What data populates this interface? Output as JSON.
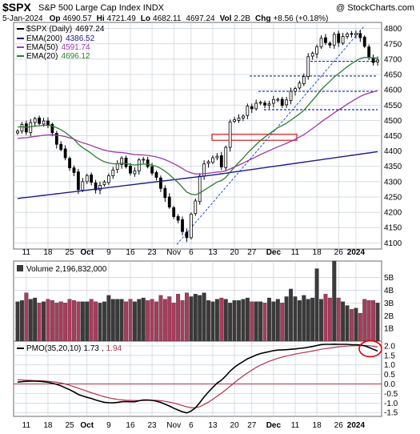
{
  "header": {
    "symbol": "$SPX",
    "name": "S&P 500 Large Cap Index",
    "exchange": "INDX",
    "watermark": "@ StockCharts.com",
    "date": "5-Jan-2024",
    "open_label": "Op",
    "open": "4690.57",
    "high_label": "Hi",
    "high": "4721.49",
    "low_label": "Lo",
    "low": "4682.11",
    "close": "4697.24",
    "vol_label": "Vol",
    "vol": "2.2B",
    "chg_label": "Chg",
    "chg": "+8.56 (+0.18%)"
  },
  "colors": {
    "up_candle": "#000000",
    "down_candle": "#000000",
    "ema200": "#1c1c8c",
    "ema50": "#9c3aa8",
    "ema20": "#2e7d32",
    "volume_up": "#3a3a3a",
    "volume_down": "#a83c5c",
    "pmo": "#000000",
    "pmo_signal": "#b2334a",
    "trend": "#2a4fd6",
    "annotation_box": "#cc2222",
    "grid": "#c8d0dc",
    "pane_bg": "#ffffff"
  },
  "chart_data": [
    {
      "type": "candlestick",
      "legend": [
        {
          "name": "$SPX (Daily)",
          "value": "4697.24",
          "color": "#000000"
        },
        {
          "name": "EMA(200)",
          "value": "4386.52",
          "color": "#1c1c8c"
        },
        {
          "name": "EMA(50)",
          "value": "4591.74",
          "color": "#9c3aa8"
        },
        {
          "name": "EMA(20)",
          "value": "4696.12",
          "color": "#2e7d32"
        }
      ],
      "x_tick_labels": [
        "11",
        "18",
        "25",
        "Oct",
        "9",
        "16",
        "23",
        "Nov",
        "6",
        "13",
        "20",
        "27",
        "Dec",
        "11",
        "18",
        "26",
        "2024"
      ],
      "y_ticks": [
        4100,
        4150,
        4200,
        4250,
        4300,
        4350,
        4400,
        4450,
        4500,
        4550,
        4600,
        4650,
        4700,
        4750,
        4800
      ],
      "ylim": [
        4080,
        4820
      ],
      "closes": [
        4465,
        4487,
        4462,
        4493,
        4506,
        4490,
        4498,
        4485,
        4460,
        4422,
        4405,
        4378,
        4345,
        4330,
        4274,
        4300,
        4320,
        4298,
        4273,
        4288,
        4299,
        4319,
        4338,
        4358,
        4377,
        4349,
        4328,
        4335,
        4371,
        4373,
        4349,
        4328,
        4314,
        4278,
        4248,
        4217,
        4186,
        4174,
        4137,
        4117,
        4194,
        4237,
        4318,
        4358,
        4365,
        4378,
        4383,
        4348,
        4412,
        4495,
        4502,
        4508,
        4514,
        4547,
        4538,
        4556,
        4559,
        4550,
        4554,
        4568,
        4569,
        4549,
        4567,
        4595,
        4604,
        4622,
        4643,
        4708,
        4719,
        4740,
        4768,
        4754,
        4746,
        4781,
        4754,
        4774,
        4782,
        4781,
        4784,
        4770,
        4742,
        4705,
        4689,
        4697
      ],
      "horizontal_lines": [
        4535,
        4595,
        4645,
        4693
      ],
      "annotation_box": {
        "x0": 4435,
        "x1": 4455
      },
      "trend_line": {
        "from": 4095,
        "to": 4810
      }
    },
    {
      "type": "bar",
      "title": "Volume",
      "value_label": "2,196,832,000",
      "y_tick_labels": [
        "1B",
        "2B",
        "3B",
        "4B",
        "5B"
      ],
      "y_ticks": [
        1,
        2,
        3,
        4,
        5
      ],
      "ylim": [
        0,
        6.3
      ],
      "values_billion": [
        3.1,
        3.2,
        3.8,
        3.3,
        3.4,
        3.0,
        3.1,
        3.3,
        3.2,
        3.0,
        3.1,
        3.0,
        3.3,
        3.2,
        3.1,
        3.1,
        3.1,
        3.3,
        3.1,
        3.0,
        3.1,
        3.6,
        3.3,
        3.3,
        3.3,
        3.1,
        3.3,
        3.1,
        3.3,
        3.4,
        3.2,
        3.3,
        3.1,
        3.6,
        3.3,
        3.5,
        3.0,
        3.7,
        3.2,
        3.8,
        3.5,
        3.7,
        3.6,
        3.8,
        3.2,
        3.1,
        3.3,
        3.4,
        3.3,
        3.0,
        3.2,
        3.2,
        3.3,
        3.4,
        3.1,
        3.1,
        3.1,
        3.0,
        3.4,
        3.1,
        3.3,
        3.0,
        3.5,
        4.1,
        3.5,
        3.2,
        3.6,
        3.3,
        3.4,
        5.7,
        3.3,
        3.7,
        3.4,
        6.3,
        3.4,
        3.1,
        2.8,
        2.5,
        2.6,
        2.2,
        3.3,
        3.2,
        3.2,
        3.0
      ]
    },
    {
      "type": "line",
      "title": "PMO(35,20,10)",
      "pmo_value": "1.73",
      "signal_value": "1.94",
      "y_tick_labels": [
        "-1.5",
        "-1.0",
        "-0.5",
        "0.0",
        "0.5",
        "1.0",
        "1.5",
        "2.0"
      ],
      "y_ticks": [
        -1.5,
        -1.0,
        -0.5,
        0.0,
        0.5,
        1.0,
        1.5,
        2.0
      ],
      "ylim": [
        -1.7,
        2.25
      ],
      "pmo": [
        0.1,
        0.12,
        0.14,
        0.15,
        0.15,
        0.14,
        0.12,
        0.09,
        0.04,
        -0.02,
        -0.1,
        -0.2,
        -0.3,
        -0.42,
        -0.55,
        -0.63,
        -0.7,
        -0.76,
        -0.84,
        -0.9,
        -0.96,
        -0.98,
        -0.99,
        -0.97,
        -0.93,
        -0.92,
        -0.93,
        -0.93,
        -0.88,
        -0.84,
        -0.84,
        -0.86,
        -0.9,
        -0.97,
        -1.06,
        -1.16,
        -1.27,
        -1.37,
        -1.46,
        -1.52,
        -1.42,
        -1.25,
        -0.98,
        -0.68,
        -0.42,
        -0.18,
        0.05,
        0.2,
        0.42,
        0.68,
        0.88,
        1.04,
        1.18,
        1.32,
        1.42,
        1.52,
        1.6,
        1.65,
        1.7,
        1.75,
        1.78,
        1.79,
        1.8,
        1.82,
        1.84,
        1.87,
        1.89,
        1.93,
        1.97,
        2.02,
        2.07,
        2.08,
        2.08,
        2.09,
        2.08,
        2.08,
        2.08,
        2.06,
        2.06,
        2.05,
        2.0,
        1.92,
        1.82,
        1.73
      ],
      "signal": [
        0.22,
        0.21,
        0.2,
        0.19,
        0.18,
        0.17,
        0.16,
        0.14,
        0.12,
        0.09,
        0.05,
        0.0,
        -0.07,
        -0.14,
        -0.22,
        -0.3,
        -0.38,
        -0.46,
        -0.53,
        -0.6,
        -0.67,
        -0.72,
        -0.77,
        -0.81,
        -0.83,
        -0.85,
        -0.86,
        -0.87,
        -0.87,
        -0.87,
        -0.86,
        -0.86,
        -0.86,
        -0.88,
        -0.91,
        -0.95,
        -1.0,
        -1.06,
        -1.13,
        -1.2,
        -1.24,
        -1.24,
        -1.19,
        -1.08,
        -0.95,
        -0.8,
        -0.64,
        -0.48,
        -0.31,
        -0.12,
        0.07,
        0.25,
        0.42,
        0.58,
        0.73,
        0.87,
        0.99,
        1.09,
        1.19,
        1.27,
        1.35,
        1.41,
        1.47,
        1.52,
        1.57,
        1.61,
        1.65,
        1.69,
        1.73,
        1.77,
        1.82,
        1.86,
        1.89,
        1.92,
        1.95,
        1.97,
        1.99,
        2.0,
        2.01,
        2.02,
        2.02,
        2.01,
        1.98,
        1.94
      ]
    }
  ]
}
